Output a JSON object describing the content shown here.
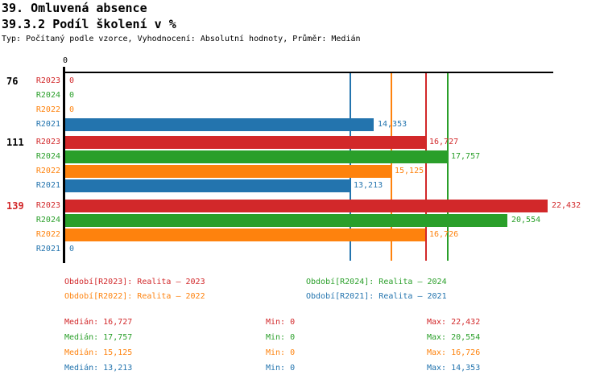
{
  "header": {
    "title": "39. Omluvená absence",
    "subtitle": "39.3.2 Podíl školení v %",
    "meta": "Typ: Počítaný podle vzorce, Vyhodnocení: Absolutní hodnoty, Průměr: Medián"
  },
  "colors": {
    "R2023": "#d2282a",
    "R2024": "#2a9f2a",
    "R2022": "#fe820d",
    "R2021": "#2374ae",
    "axis": "#000000",
    "group_label_default": "#000000",
    "group_label_highlight": "#d2282a"
  },
  "chart_data": {
    "type": "bar",
    "orientation": "horizontal",
    "title": "39.3.2 Podíl školení v %",
    "axis_origin_label": "0",
    "xlim": [
      0,
      22700
    ],
    "grid": false,
    "series_order": [
      "R2023",
      "R2024",
      "R2022",
      "R2021"
    ],
    "groups": [
      {
        "label": "76",
        "label_color": "#000000",
        "bars": [
          {
            "series": "R2023",
            "value": 0,
            "label": "0"
          },
          {
            "series": "R2024",
            "value": 0,
            "label": "0"
          },
          {
            "series": "R2022",
            "value": 0,
            "label": "0"
          },
          {
            "series": "R2021",
            "value": 14353,
            "label": "14,353"
          }
        ]
      },
      {
        "label": "111",
        "label_color": "#000000",
        "bars": [
          {
            "series": "R2023",
            "value": 16727,
            "label": "16,727"
          },
          {
            "series": "R2024",
            "value": 17757,
            "label": "17,757"
          },
          {
            "series": "R2022",
            "value": 15125,
            "label": "15,125"
          },
          {
            "series": "R2021",
            "value": 13213,
            "label": "13,213"
          }
        ]
      },
      {
        "label": "139",
        "label_color": "#d2282a",
        "bars": [
          {
            "series": "R2023",
            "value": 22432,
            "label": "22,432"
          },
          {
            "series": "R2024",
            "value": 20554,
            "label": "20,554"
          },
          {
            "series": "R2022",
            "value": 16726,
            "label": "16,726"
          },
          {
            "series": "R2021",
            "value": 0,
            "label": "0"
          }
        ]
      }
    ],
    "median_lines": [
      {
        "series": "R2021",
        "value": 13213
      },
      {
        "series": "R2022",
        "value": 15125
      },
      {
        "series": "R2023",
        "value": 16727
      },
      {
        "series": "R2024",
        "value": 17757
      }
    ]
  },
  "legend": {
    "items": [
      {
        "series": "R2023",
        "label": "Období[R2023]: Realita – 2023"
      },
      {
        "series": "R2024",
        "label": "Období[R2024]: Realita – 2024"
      },
      {
        "series": "R2022",
        "label": "Období[R2022]: Realita – 2022"
      },
      {
        "series": "R2021",
        "label": "Období[R2021]: Realita – 2021"
      }
    ]
  },
  "stats": {
    "rows": [
      {
        "series": "R2023",
        "median": "Medián: 16,727",
        "min": "Min: 0",
        "max": "Max: 22,432"
      },
      {
        "series": "R2024",
        "median": "Medián: 17,757",
        "min": "Min: 0",
        "max": "Max: 20,554"
      },
      {
        "series": "R2022",
        "median": "Medián: 15,125",
        "min": "Min: 0",
        "max": "Max: 16,726"
      },
      {
        "series": "R2021",
        "median": "Medián: 13,213",
        "min": "Min: 0",
        "max": "Max: 14,353"
      }
    ]
  }
}
